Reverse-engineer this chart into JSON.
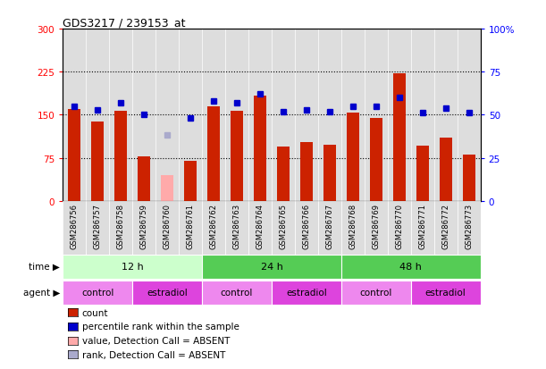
{
  "title": "GDS3217 / 239153_at",
  "samples": [
    "GSM286756",
    "GSM286757",
    "GSM286758",
    "GSM286759",
    "GSM286760",
    "GSM286761",
    "GSM286762",
    "GSM286763",
    "GSM286764",
    "GSM286765",
    "GSM286766",
    "GSM286767",
    "GSM286768",
    "GSM286769",
    "GSM286770",
    "GSM286771",
    "GSM286772",
    "GSM286773"
  ],
  "counts": [
    160,
    138,
    157,
    78,
    null,
    70,
    165,
    157,
    183,
    95,
    102,
    97,
    153,
    145,
    222,
    96,
    110,
    80
  ],
  "absent_counts": [
    null,
    null,
    null,
    null,
    45,
    null,
    null,
    null,
    null,
    null,
    null,
    null,
    null,
    null,
    null,
    null,
    null,
    null
  ],
  "percentile_ranks": [
    55,
    53,
    57,
    50,
    null,
    48,
    58,
    57,
    62,
    52,
    53,
    52,
    55,
    55,
    60,
    51,
    54,
    51
  ],
  "absent_ranks": [
    null,
    null,
    null,
    null,
    38,
    null,
    null,
    null,
    null,
    null,
    null,
    null,
    null,
    null,
    null,
    null,
    null,
    null
  ],
  "bar_color": "#cc2200",
  "bar_absent_color": "#ffaaaa",
  "dot_color": "#0000cc",
  "dot_absent_color": "#aaaacc",
  "ylim_left": [
    0,
    300
  ],
  "ylim_right": [
    0,
    100
  ],
  "yticks_left": [
    0,
    75,
    150,
    225,
    300
  ],
  "ytick_labels_left": [
    "0",
    "75",
    "150",
    "225",
    "300"
  ],
  "yticks_right": [
    0,
    25,
    50,
    75,
    100
  ],
  "ytick_labels_right": [
    "0",
    "25",
    "50",
    "75",
    "100%"
  ],
  "hlines": [
    75,
    150,
    225
  ],
  "plot_bg_color": "#dddddd",
  "time_groups": [
    {
      "label": "12 h",
      "start": 0,
      "end": 6,
      "color": "#ccffcc"
    },
    {
      "label": "24 h",
      "start": 6,
      "end": 12,
      "color": "#55cc55"
    },
    {
      "label": "48 h",
      "start": 12,
      "end": 18,
      "color": "#55cc55"
    }
  ],
  "agent_groups": [
    {
      "label": "control",
      "start": 0,
      "end": 3,
      "color": "#ee88ee"
    },
    {
      "label": "estradiol",
      "start": 3,
      "end": 6,
      "color": "#dd44dd"
    },
    {
      "label": "control",
      "start": 6,
      "end": 9,
      "color": "#ee88ee"
    },
    {
      "label": "estradiol",
      "start": 9,
      "end": 12,
      "color": "#dd44dd"
    },
    {
      "label": "control",
      "start": 12,
      "end": 15,
      "color": "#ee88ee"
    },
    {
      "label": "estradiol",
      "start": 15,
      "end": 18,
      "color": "#dd44dd"
    }
  ],
  "legend_items": [
    {
      "label": "count",
      "color": "#cc2200"
    },
    {
      "label": "percentile rank within the sample",
      "color": "#0000cc"
    },
    {
      "label": "value, Detection Call = ABSENT",
      "color": "#ffaaaa"
    },
    {
      "label": "rank, Detection Call = ABSENT",
      "color": "#aaaacc"
    }
  ]
}
